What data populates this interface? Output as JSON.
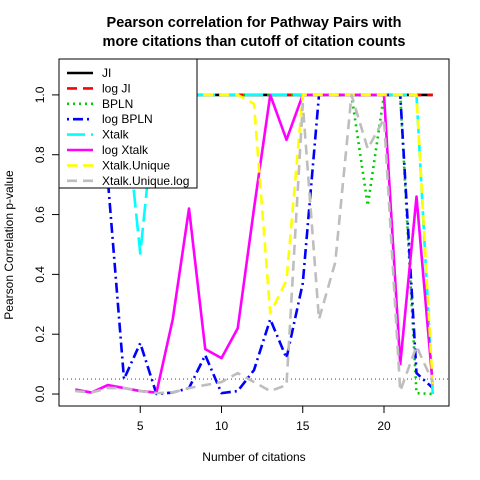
{
  "chart_data": {
    "type": "line",
    "title_line1": "Pearson correlation for Pathway Pairs with",
    "title_line2": "more citations than cutoff of citation counts",
    "xlabel": "Number of citations",
    "ylabel": "Pearson Correlation p-value",
    "xlim": [
      0,
      24
    ],
    "ylim": [
      -0.04,
      1.12
    ],
    "x_ticks": [
      5,
      10,
      15,
      20
    ],
    "y_ticks": [
      0.0,
      0.2,
      0.4,
      0.6,
      0.8,
      1.0
    ],
    "y_tick_labels": [
      "0.0",
      "0.2",
      "0.4",
      "0.6",
      "0.8",
      "1.0"
    ],
    "reference_line": {
      "y": 0.05,
      "style": "dotted",
      "color": "#555555"
    },
    "legend_position": "top-left",
    "series": [
      {
        "name": "JI",
        "color": "#000000",
        "dash": "solid",
        "x": [
          1,
          2,
          3,
          4,
          5,
          6,
          7,
          8,
          9,
          10,
          11,
          12,
          13,
          14,
          15,
          16,
          17,
          18,
          19,
          20,
          21,
          22,
          23
        ],
        "y": [
          1,
          1,
          1,
          1,
          1,
          1,
          1,
          1,
          1,
          1,
          1,
          1,
          1,
          1,
          1,
          1,
          1,
          1,
          1,
          1,
          1,
          1,
          1
        ]
      },
      {
        "name": "log JI",
        "color": "#ff0000",
        "dash": "dashed",
        "x": [
          1,
          2,
          3,
          4,
          5,
          6,
          7,
          8,
          9,
          10,
          11,
          12,
          13,
          14,
          15,
          16,
          17,
          18,
          19,
          20,
          21,
          22,
          23
        ],
        "y": [
          1,
          1,
          1,
          1,
          1,
          1,
          1,
          1,
          1,
          1,
          1,
          1,
          1,
          1,
          1,
          1,
          1,
          1,
          1,
          1,
          1,
          1,
          1
        ]
      },
      {
        "name": "BPLN",
        "color": "#00cc00",
        "dash": "dotted",
        "x": [
          1,
          2,
          3,
          4,
          5,
          6,
          7,
          8,
          9,
          10,
          11,
          12,
          13,
          14,
          15,
          16,
          17,
          18,
          19,
          20,
          21,
          22,
          23
        ],
        "y": [
          1,
          1,
          1,
          1,
          1,
          1,
          1,
          1,
          1,
          1,
          1,
          1,
          1,
          1,
          1,
          1,
          1,
          1,
          0.63,
          1,
          1,
          0.003,
          0.0
        ]
      },
      {
        "name": "log BPLN",
        "color": "#0000ff",
        "dash": "dotdash",
        "x": [
          1,
          2,
          3,
          4,
          5,
          6,
          7,
          8,
          9,
          10,
          11,
          12,
          13,
          14,
          15,
          16,
          17,
          18,
          19,
          20,
          21,
          22,
          23
        ],
        "y": [
          1,
          1,
          0.72,
          0.05,
          0.17,
          0.0,
          0.005,
          0.02,
          0.13,
          0.003,
          0.01,
          0.08,
          0.25,
          0.12,
          0.37,
          1,
          1,
          1,
          1,
          1,
          1,
          0.07,
          0.02
        ]
      },
      {
        "name": "Xtalk",
        "color": "#00ffff",
        "dash": "longdash",
        "x": [
          1,
          2,
          3,
          4,
          5,
          6,
          7,
          8,
          9,
          10,
          11,
          12,
          13,
          14,
          15,
          16,
          17,
          18,
          19,
          20,
          21,
          22,
          23
        ],
        "y": [
          1,
          1,
          1,
          1,
          0.47,
          1,
          1,
          1,
          1,
          1,
          1,
          1,
          1,
          1,
          1,
          1,
          1,
          1,
          1,
          1,
          1,
          1,
          0.0
        ]
      },
      {
        "name": "log Xtalk",
        "color": "#ff00ff",
        "dash": "solid",
        "x": [
          1,
          2,
          3,
          4,
          5,
          6,
          7,
          8,
          9,
          10,
          11,
          12,
          13,
          14,
          15,
          16,
          17,
          18,
          19,
          20,
          21,
          22,
          23
        ],
        "y": [
          0.015,
          0.005,
          0.03,
          0.02,
          0.01,
          0.005,
          0.25,
          0.62,
          0.15,
          0.12,
          0.22,
          0.62,
          1.0,
          0.85,
          1,
          1,
          1,
          1,
          1,
          1,
          0.1,
          0.66,
          0.03
        ]
      },
      {
        "name": "Xtalk.Unique",
        "color": "#ffff00",
        "dash": "dashed",
        "x": [
          1,
          2,
          3,
          4,
          5,
          6,
          7,
          8,
          9,
          10,
          11,
          12,
          13,
          14,
          15,
          16,
          17,
          18,
          19,
          20,
          21,
          22,
          23
        ],
        "y": [
          1,
          1,
          1,
          1,
          1,
          1,
          1,
          1,
          1,
          1,
          1,
          0.97,
          0.27,
          0.38,
          1,
          1,
          1,
          1,
          1,
          1,
          1,
          1,
          0.03
        ]
      },
      {
        "name": "Xtalk.Unique.log",
        "color": "#bebebe",
        "dash": "dashed",
        "x": [
          1,
          2,
          3,
          4,
          5,
          6,
          7,
          8,
          9,
          10,
          11,
          12,
          13,
          14,
          15,
          16,
          17,
          18,
          19,
          20,
          21,
          22,
          23
        ],
        "y": [
          0.01,
          0.005,
          0.02,
          0.02,
          0.01,
          0.003,
          0.005,
          0.02,
          0.03,
          0.04,
          0.07,
          0.04,
          0.01,
          0.03,
          0.97,
          0.25,
          0.44,
          1.0,
          0.82,
          0.92,
          0.01,
          0.16,
          0.04
        ]
      }
    ]
  }
}
